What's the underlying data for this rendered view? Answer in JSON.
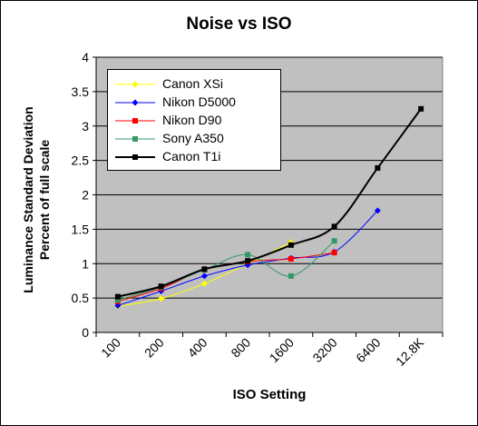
{
  "chart_data": {
    "type": "line",
    "title": "Noise vs ISO",
    "xlabel": "ISO Setting",
    "ylabel": [
      "Luminance Standard Deviation",
      "Percent of full scale"
    ],
    "categories": [
      "100",
      "200",
      "400",
      "800",
      "1600",
      "3200",
      "6400",
      "12.8K"
    ],
    "ylim": [
      0,
      4
    ],
    "yticks": [
      "0",
      "0.5",
      "1",
      "1.5",
      "2",
      "2.5",
      "3",
      "3.5",
      "4"
    ],
    "grid": true,
    "legend_position": "top-left",
    "plot_background": "#c0c0c0",
    "series": [
      {
        "name": "Canon XSi",
        "color": "#ffff00",
        "marker": "diamond",
        "values": [
          0.38,
          0.49,
          0.71,
          1.0,
          1.31,
          null,
          null,
          null
        ]
      },
      {
        "name": "Nikon D5000",
        "color": "#0000ff",
        "marker": "diamond",
        "values": [
          0.39,
          0.6,
          0.82,
          0.98,
          1.08,
          1.17,
          1.77,
          null
        ]
      },
      {
        "name": "Nikon D90",
        "color": "#ff0000",
        "marker": "square",
        "values": [
          0.45,
          0.64,
          0.91,
          1.03,
          1.07,
          1.16,
          null,
          null
        ]
      },
      {
        "name": "Sony A350",
        "color": "#339966",
        "marker": "square",
        "values": [
          0.47,
          0.66,
          0.91,
          1.13,
          0.82,
          1.33,
          null,
          null
        ]
      },
      {
        "name": "Canon T1i",
        "color": "#000000",
        "marker": "square",
        "values": [
          0.52,
          0.67,
          0.92,
          1.04,
          1.27,
          1.54,
          2.39,
          3.25
        ]
      }
    ]
  }
}
